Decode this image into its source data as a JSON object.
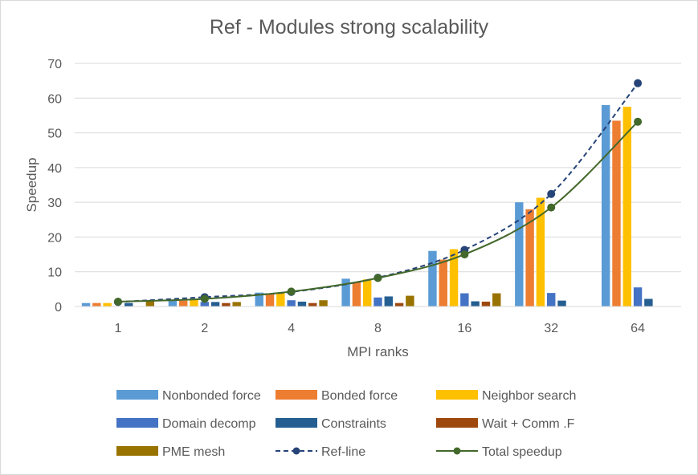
{
  "chart_data": {
    "type": "bar",
    "title": "Ref - Modules strong scalability",
    "xlabel": "MPI ranks",
    "ylabel": "Speedup",
    "categories": [
      "1",
      "2",
      "4",
      "8",
      "16",
      "32",
      "64"
    ],
    "ylim": [
      0,
      70
    ],
    "yticks": [
      0,
      10,
      20,
      30,
      40,
      50,
      60,
      70
    ],
    "grid": true,
    "legend_position": "bottom",
    "series": [
      {
        "name": "Nonbonded force",
        "kind": "bar",
        "color": "#5b9bd5",
        "values": [
          1,
          2,
          4,
          8,
          16,
          30,
          58
        ]
      },
      {
        "name": "Bonded force",
        "kind": "bar",
        "color": "#ed7d31",
        "values": [
          1,
          1.7,
          3.7,
          7,
          13.5,
          28,
          53.5
        ]
      },
      {
        "name": "Neighbor search",
        "kind": "bar",
        "color": "#ffc000",
        "values": [
          1,
          2,
          4,
          7.8,
          16.5,
          31.3,
          57.5
        ]
      },
      {
        "name": "Domain decomp",
        "kind": "bar",
        "color": "#4472c4",
        "values": [
          null,
          1.3,
          1.8,
          2.6,
          3.8,
          3.9,
          5.5
        ]
      },
      {
        "name": "Constraints",
        "kind": "bar",
        "color": "#255e91",
        "values": [
          1,
          1.3,
          1.4,
          2.9,
          1.5,
          1.7,
          2.2
        ]
      },
      {
        "name": "Wait + Comm .F",
        "kind": "bar",
        "color": "#9e480e",
        "values": [
          null,
          1,
          1,
          1,
          1.4,
          null,
          null
        ]
      },
      {
        "name": "PME mesh",
        "kind": "bar",
        "color": "#997300",
        "values": [
          1.5,
          1.3,
          1.8,
          3.1,
          3.8,
          null,
          null
        ]
      },
      {
        "name": "Ref-line",
        "kind": "line",
        "dashed": true,
        "color": "#264478",
        "values": [
          1.3,
          2.7,
          4.2,
          8.3,
          16.3,
          32.4,
          64.3
        ]
      },
      {
        "name": "Total speedup",
        "kind": "line",
        "dashed": false,
        "color": "#43682b",
        "values": [
          1.4,
          2.2,
          4.3,
          8.2,
          15,
          28.5,
          53.2
        ]
      }
    ]
  }
}
